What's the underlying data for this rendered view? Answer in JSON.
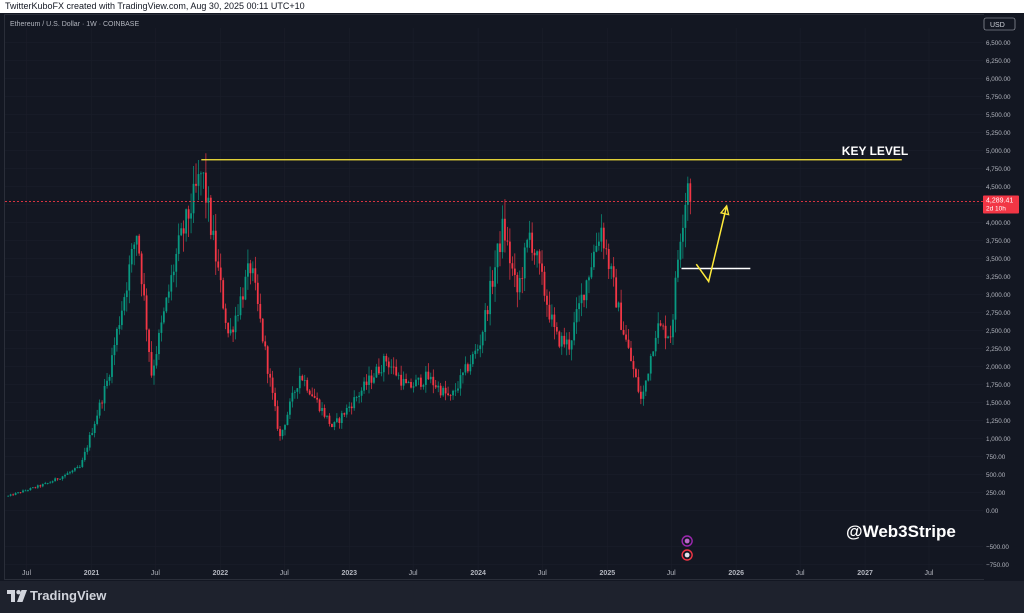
{
  "header": {
    "attribution": "TwitterKuboFX created with TradingView.com, Aug 30, 2025 00:11 UTC+10"
  },
  "footer": {
    "brand": "TradingView",
    "logo_icon": "tradingview-logo-icon"
  },
  "chart_data": {
    "type": "candlestick",
    "symbol_line": "Ethereum / U.S. Dollar · 1W · COINBASE",
    "currency": "USD",
    "price_axis": {
      "ticks": [
        "6,500.00",
        "6,250.00",
        "6,000.00",
        "5,750.00",
        "5,500.00",
        "5,250.00",
        "5,000.00",
        "4,750.00",
        "4,500.00",
        "4,250.00",
        "4,000.00",
        "3,750.00",
        "3,500.00",
        "3,250.00",
        "3,000.00",
        "2,750.00",
        "2,500.00",
        "2,250.00",
        "2,000.00",
        "1,750.00",
        "1,500.00",
        "1,250.00",
        "1,000.00",
        "750.00",
        "500.00",
        "250.00",
        "0.00",
        "−500.00",
        "−750.00"
      ],
      "range": [
        -800,
        6700
      ]
    },
    "time_axis": {
      "range": [
        "2020-05-01",
        "2027-12-01"
      ],
      "ticks": [
        {
          "label": "Jul",
          "date": "2020-07-01",
          "bold": false
        },
        {
          "label": "2021",
          "date": "2021-01-01",
          "bold": true
        },
        {
          "label": "Jul",
          "date": "2021-07-01",
          "bold": false
        },
        {
          "label": "2022",
          "date": "2022-01-01",
          "bold": true
        },
        {
          "label": "Jul",
          "date": "2022-07-01",
          "bold": false
        },
        {
          "label": "2023",
          "date": "2023-01-01",
          "bold": true
        },
        {
          "label": "Jul",
          "date": "2023-07-01",
          "bold": false
        },
        {
          "label": "2024",
          "date": "2024-01-01",
          "bold": true
        },
        {
          "label": "Jul",
          "date": "2024-07-01",
          "bold": false
        },
        {
          "label": "2025",
          "date": "2025-01-01",
          "bold": true
        },
        {
          "label": "Jul",
          "date": "2025-07-01",
          "bold": false
        },
        {
          "label": "2026",
          "date": "2026-01-01",
          "bold": true
        },
        {
          "label": "Jul",
          "date": "2026-07-01",
          "bold": false
        },
        {
          "label": "2027",
          "date": "2027-01-01",
          "bold": true
        },
        {
          "label": "Jul",
          "date": "2027-07-01",
          "bold": false
        }
      ]
    },
    "anchors": [
      {
        "date": "2020-05-10",
        "close": 200
      },
      {
        "date": "2020-09-01",
        "close": 380
      },
      {
        "date": "2020-12-01",
        "close": 600
      },
      {
        "date": "2021-02-15",
        "close": 1800
      },
      {
        "date": "2021-05-10",
        "close": 3900
      },
      {
        "date": "2021-06-20",
        "close": 1900
      },
      {
        "date": "2021-09-01",
        "close": 3600
      },
      {
        "date": "2021-11-10",
        "close": 4700
      },
      {
        "date": "2022-01-25",
        "close": 2400
      },
      {
        "date": "2022-03-28",
        "close": 3400
      },
      {
        "date": "2022-06-18",
        "close": 1000
      },
      {
        "date": "2022-08-15",
        "close": 1900
      },
      {
        "date": "2022-11-15",
        "close": 1150
      },
      {
        "date": "2023-04-15",
        "close": 2100
      },
      {
        "date": "2023-06-15",
        "close": 1700
      },
      {
        "date": "2023-08-10",
        "close": 1850
      },
      {
        "date": "2023-10-15",
        "close": 1550
      },
      {
        "date": "2024-01-05",
        "close": 2300
      },
      {
        "date": "2024-03-12",
        "close": 3950
      },
      {
        "date": "2024-04-20",
        "close": 3000
      },
      {
        "date": "2024-05-27",
        "close": 3850
      },
      {
        "date": "2024-08-08",
        "close": 2400
      },
      {
        "date": "2024-09-15",
        "close": 2300
      },
      {
        "date": "2024-12-14",
        "close": 3950
      },
      {
        "date": "2025-02-05",
        "close": 2700
      },
      {
        "date": "2025-04-08",
        "close": 1500
      },
      {
        "date": "2025-05-20",
        "close": 2550
      },
      {
        "date": "2025-07-01",
        "close": 2450
      },
      {
        "date": "2025-07-25",
        "close": 3800
      },
      {
        "date": "2025-08-23",
        "close": 4800
      },
      {
        "date": "2025-08-30",
        "close": 4289.41
      }
    ],
    "last_price": {
      "value": 4289.41,
      "label": "4,289.41",
      "countdown": "2d 10h",
      "color": "#f23645"
    },
    "key_level": {
      "label": "KEY LEVEL",
      "price": 4870,
      "from": "2021-11-08",
      "to": "2027-04-15",
      "color": "#ffeb3b"
    },
    "support_level": {
      "price": 3360,
      "from": "2025-07-30",
      "to": "2026-02-10",
      "color": "#ffffff"
    },
    "projection": {
      "color": "#ffeb3b",
      "points": [
        {
          "date": "2025-09-10",
          "price": 3420
        },
        {
          "date": "2025-10-15",
          "price": 3180
        },
        {
          "date": "2025-12-05",
          "price": 4230
        }
      ]
    },
    "colors": {
      "up": "#089981",
      "down": "#f23645"
    }
  },
  "watermark": {
    "text": "@Web3Stripe"
  },
  "events": [
    {
      "icon": "lightning-event-icon",
      "date": "2025-08-15",
      "color": "#9c27b0"
    },
    {
      "icon": "us-flag-event-icon",
      "date": "2025-08-15",
      "color": "#f23645"
    }
  ]
}
